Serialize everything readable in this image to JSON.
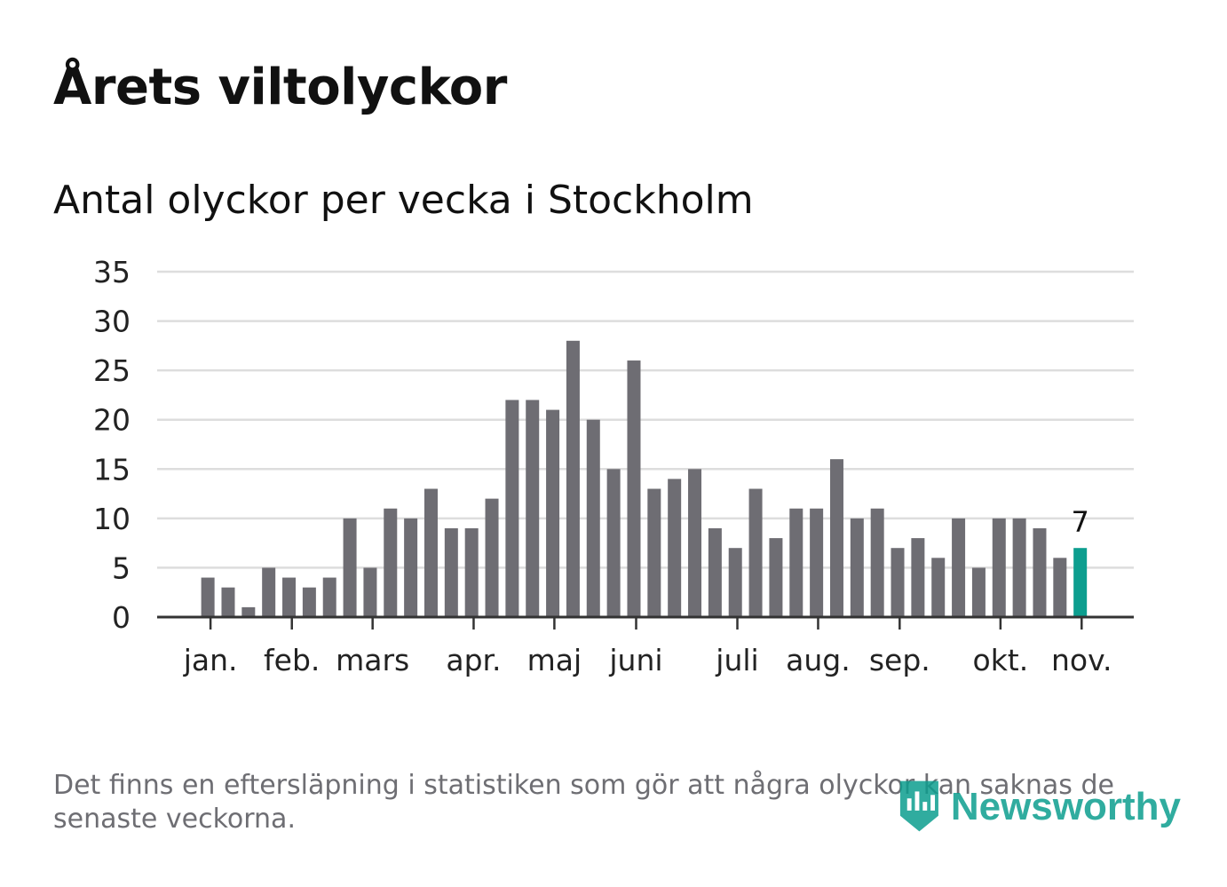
{
  "title": "Årets viltolyckor",
  "subtitle": "Antal olyckor per vecka i Stockholm",
  "footnote": "Det finns en eftersläpning i statistiken som gör att några olyckor kan saknas de senaste veckorna.",
  "logo": {
    "text": "Newsworthy",
    "icon": "newsworthy-logo-icon"
  },
  "colors": {
    "bar": "#6e6d73",
    "highlight": "#0d9e8f",
    "grid": "#dddddd",
    "axis": "#333333",
    "logo": "#0d9e8f"
  },
  "chart_data": {
    "type": "bar",
    "title": "Årets viltolyckor",
    "subtitle": "Antal olyckor per vecka i Stockholm",
    "xlabel": "",
    "ylabel": "",
    "ylim": [
      0,
      35
    ],
    "yticks": [
      0,
      5,
      10,
      15,
      20,
      25,
      30,
      35
    ],
    "grid": true,
    "slots": 48,
    "first_bar_slot": 2,
    "values": [
      4,
      3,
      1,
      5,
      4,
      3,
      4,
      10,
      5,
      11,
      10,
      13,
      9,
      9,
      12,
      22,
      22,
      21,
      28,
      20,
      15,
      26,
      13,
      14,
      15,
      9,
      7,
      13,
      8,
      11,
      11,
      16,
      10,
      11,
      7,
      8,
      6,
      10,
      5,
      10,
      10,
      9,
      6,
      7
    ],
    "highlight_index": 43,
    "highlight_label": "7",
    "month_labels": [
      {
        "label": "jan.",
        "pos": 2.63
      },
      {
        "label": "feb.",
        "pos": 6.64
      },
      {
        "label": "mars",
        "pos": 10.62
      },
      {
        "label": "apr.",
        "pos": 15.6
      },
      {
        "label": "maj",
        "pos": 19.58
      },
      {
        "label": "juni",
        "pos": 23.61
      },
      {
        "label": "juli",
        "pos": 28.6
      },
      {
        "label": "aug.",
        "pos": 32.58
      },
      {
        "label": "sep.",
        "pos": 36.6
      },
      {
        "label": "okt.",
        "pos": 41.57
      },
      {
        "label": "nov.",
        "pos": 45.57
      }
    ]
  }
}
